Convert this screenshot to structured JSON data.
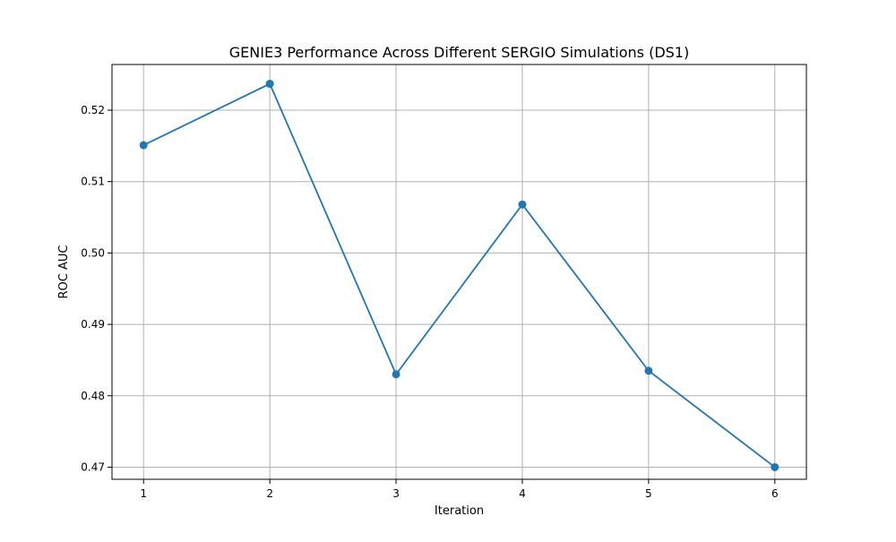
{
  "chart_data": {
    "type": "line",
    "title": "GENIE3 Performance Across Different SERGIO Simulations (DS1)",
    "xlabel": "Iteration",
    "ylabel": "ROC AUC",
    "x": [
      1,
      2,
      3,
      4,
      5,
      6
    ],
    "xticks": [
      "1",
      "2",
      "3",
      "4",
      "5",
      "6"
    ],
    "xlim": [
      0.75,
      6.25
    ],
    "yticks": [
      "0.47",
      "0.48",
      "0.49",
      "0.50",
      "0.51",
      "0.52"
    ],
    "ylim": [
      0.4683,
      0.5264
    ],
    "grid": true,
    "series": [
      {
        "values": [
          0.5151,
          0.5237,
          0.483,
          0.5068,
          0.4835,
          0.47
        ],
        "color": "#1f77b4",
        "marker": "circle"
      }
    ]
  }
}
